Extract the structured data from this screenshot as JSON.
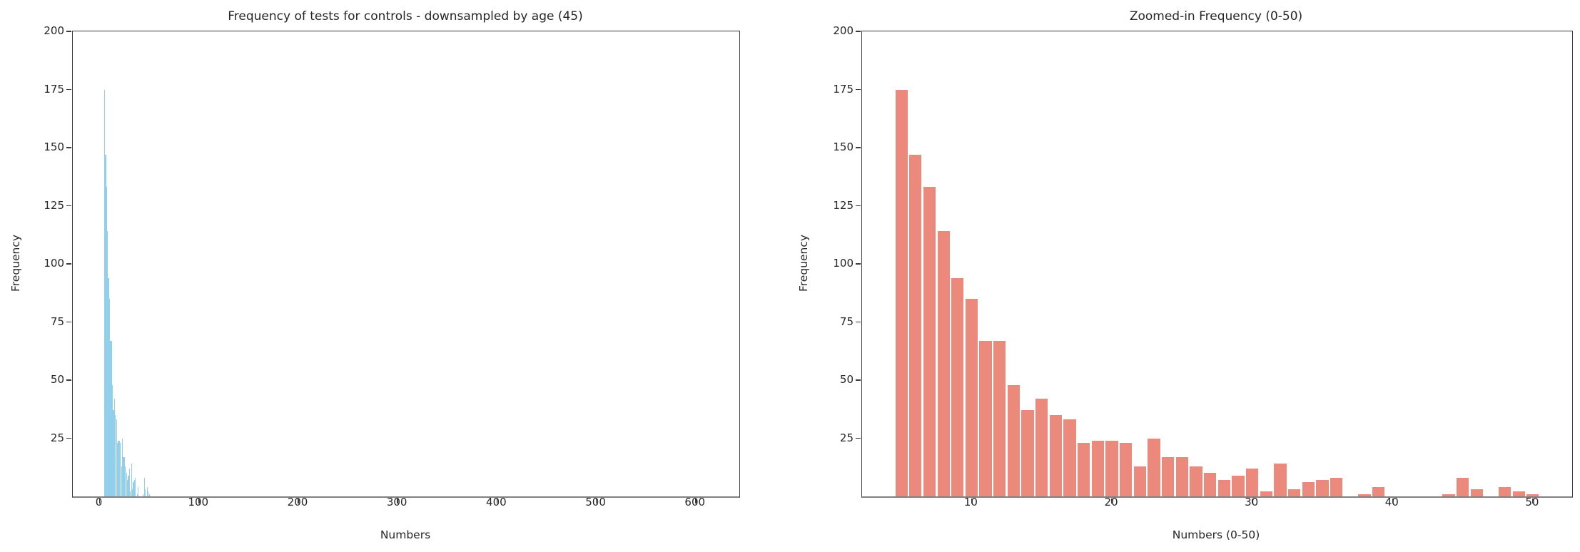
{
  "chart_data": [
    {
      "type": "bar",
      "title": "Frequency of tests for controls - downsampled by age (45)",
      "xlabel": "Numbers",
      "ylabel": "Frequency",
      "bar_color": "#92CFEA",
      "xlim": [
        -27,
        644
      ],
      "ylim": [
        0,
        200
      ],
      "xticks": [
        0,
        100,
        200,
        300,
        400,
        500,
        600
      ],
      "yticks": [
        25,
        50,
        75,
        100,
        125,
        150,
        175,
        200
      ],
      "bar_width_units": 0.9,
      "legend": "none",
      "grid": "off",
      "x": [
        5,
        6,
        7,
        8,
        9,
        10,
        11,
        12,
        13,
        14,
        15,
        16,
        17,
        18,
        19,
        20,
        21,
        22,
        23,
        24,
        25,
        26,
        27,
        28,
        29,
        30,
        31,
        32,
        33,
        34,
        35,
        36,
        37,
        38,
        39,
        40,
        41,
        42,
        43,
        44,
        45,
        46,
        47,
        48,
        49,
        50
      ],
      "values": [
        175,
        147,
        133,
        114,
        94,
        85,
        67,
        67,
        48,
        37,
        42,
        35,
        33,
        23,
        24,
        24,
        23,
        13,
        25,
        17,
        17,
        13,
        10,
        7,
        9,
        12,
        2,
        14,
        3,
        6,
        7,
        8,
        0,
        1,
        4,
        0,
        0,
        0,
        0,
        1,
        8,
        3,
        0,
        4,
        2,
        1
      ]
    },
    {
      "type": "bar",
      "title": "Zoomed-in Frequency (0-50)",
      "xlabel": "Numbers (0-50)",
      "ylabel": "Frequency",
      "bar_color": "#EC897D",
      "xlim": [
        2.2,
        52.8
      ],
      "ylim": [
        0,
        200
      ],
      "xticks": [
        10,
        20,
        30,
        40,
        50
      ],
      "yticks": [
        25,
        50,
        75,
        100,
        125,
        150,
        175,
        200
      ],
      "bar_width_units": 0.87,
      "legend": "none",
      "grid": "off",
      "x": [
        5,
        6,
        7,
        8,
        9,
        10,
        11,
        12,
        13,
        14,
        15,
        16,
        17,
        18,
        19,
        20,
        21,
        22,
        23,
        24,
        25,
        26,
        27,
        28,
        29,
        30,
        31,
        32,
        33,
        34,
        35,
        36,
        37,
        38,
        39,
        40,
        41,
        42,
        43,
        44,
        45,
        46,
        47,
        48,
        49,
        50
      ],
      "values": [
        175,
        147,
        133,
        114,
        94,
        85,
        67,
        67,
        48,
        37,
        42,
        35,
        33,
        23,
        24,
        24,
        23,
        13,
        25,
        17,
        17,
        13,
        10,
        7,
        9,
        12,
        2,
        14,
        3,
        6,
        7,
        8,
        0,
        1,
        4,
        0,
        0,
        0,
        0,
        1,
        8,
        3,
        0,
        4,
        2,
        1
      ]
    }
  ]
}
